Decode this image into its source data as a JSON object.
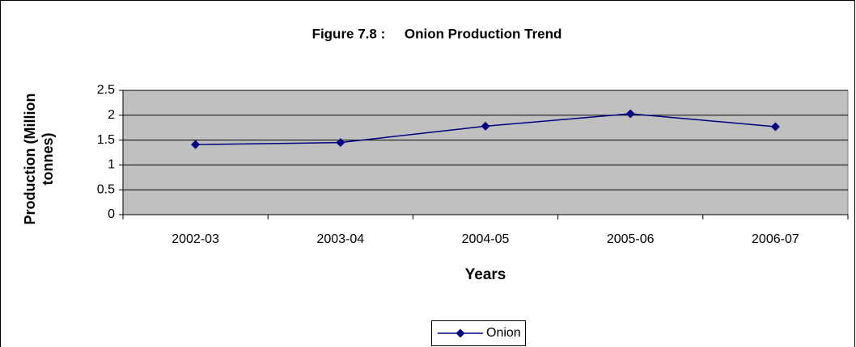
{
  "chart_data": {
    "type": "line",
    "title": "Figure 7.8 :     Onion Production Trend",
    "x_label": "Years",
    "y_label": "Production (Million tonnes)",
    "categories": [
      "2002-03",
      "2003-04",
      "2004-05",
      "2005-06",
      "2006-07"
    ],
    "series": [
      {
        "name": "Onion",
        "color": "#000080",
        "values": [
          1.41,
          1.45,
          1.78,
          2.03,
          1.77
        ]
      }
    ],
    "ylim": [
      0,
      2.5
    ],
    "yticks": [
      0,
      0.5,
      1,
      1.5,
      2,
      2.5
    ],
    "grid": true,
    "plot_background": "#c0c0c0",
    "legend": "bottom"
  }
}
